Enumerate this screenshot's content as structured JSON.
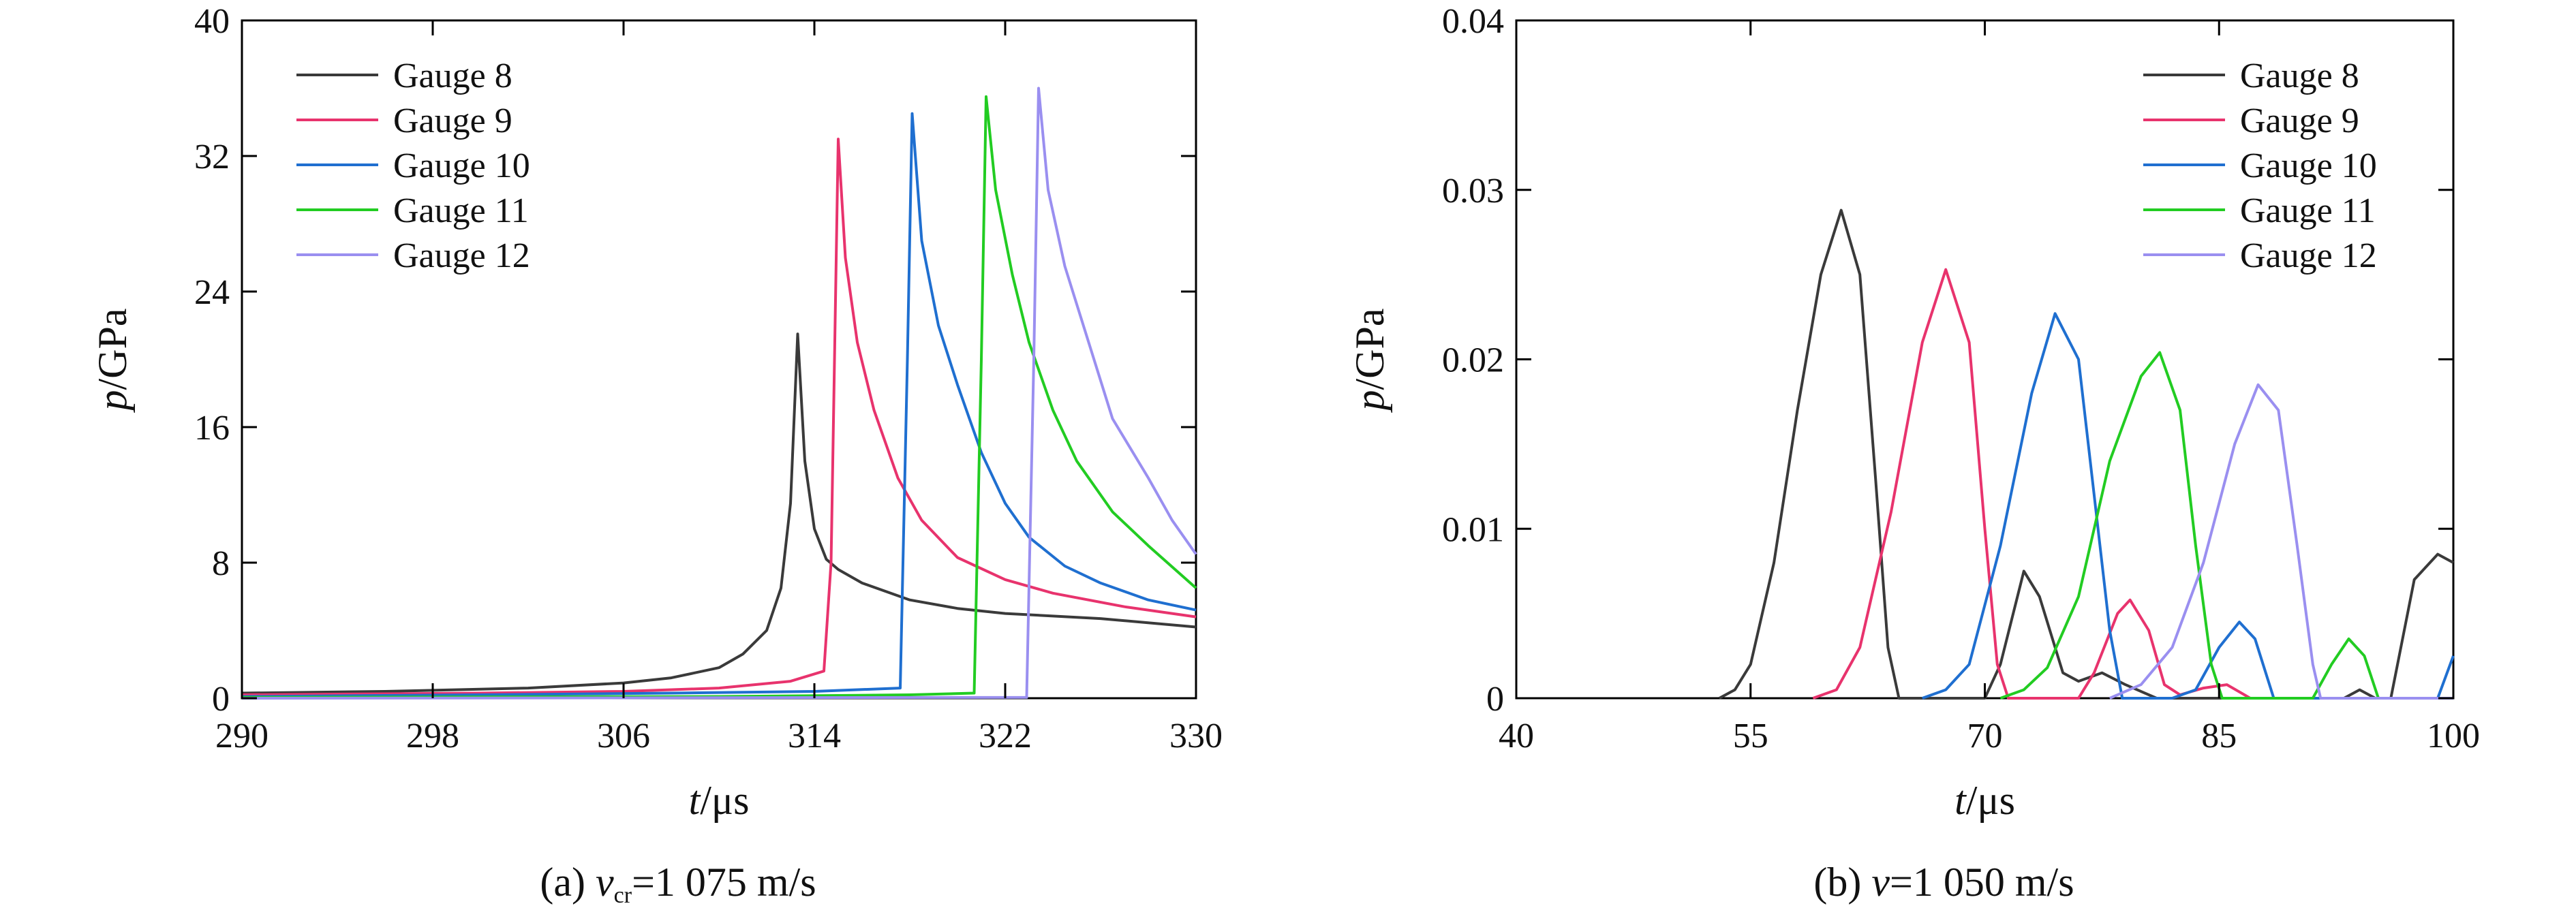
{
  "colors": {
    "gauge8": "#3a3a3a",
    "gauge9": "#e8336d",
    "gauge10": "#1f6fd0",
    "gauge11": "#22cc22",
    "gauge12": "#9a8ff0",
    "axis": "#000000"
  },
  "chart_data": [
    {
      "type": "line",
      "panel": "a",
      "caption_prefix": "(a) ",
      "caption_var": "v",
      "caption_sub": "cr",
      "caption_rest": "=1 075 m/s",
      "xlabel_var": "t",
      "xlabel_unit": "/μs",
      "ylabel_var": "p",
      "ylabel_unit": "/GPa",
      "xlim": [
        290,
        330
      ],
      "ylim": [
        0,
        40
      ],
      "xticks": [
        290,
        298,
        306,
        314,
        322,
        330
      ],
      "yticks": [
        0,
        8,
        16,
        24,
        32,
        40
      ],
      "ytick_labels": [
        "0",
        "8",
        "16",
        "24",
        "32",
        "40"
      ],
      "legend_position": "top-left",
      "grid": false,
      "series": [
        {
          "name": "Gauge 8",
          "color_key": "gauge8",
          "points": [
            [
              290,
              0.3
            ],
            [
              296,
              0.4
            ],
            [
              302,
              0.6
            ],
            [
              306,
              0.9
            ],
            [
              308,
              1.2
            ],
            [
              310,
              1.8
            ],
            [
              311,
              2.6
            ],
            [
              312,
              4.0
            ],
            [
              312.6,
              6.5
            ],
            [
              313.0,
              11.5
            ],
            [
              313.3,
              21.5
            ],
            [
              313.6,
              14.0
            ],
            [
              314.0,
              10.0
            ],
            [
              314.5,
              8.2
            ],
            [
              315,
              7.6
            ],
            [
              316,
              6.8
            ],
            [
              318,
              5.8
            ],
            [
              320,
              5.3
            ],
            [
              322,
              5.0
            ],
            [
              326,
              4.7
            ],
            [
              330,
              4.2
            ]
          ]
        },
        {
          "name": "Gauge 9",
          "color_key": "gauge9",
          "points": [
            [
              290,
              0.2
            ],
            [
              300,
              0.3
            ],
            [
              306,
              0.4
            ],
            [
              310,
              0.6
            ],
            [
              313,
              1.0
            ],
            [
              314.4,
              1.6
            ],
            [
              314.7,
              8.0
            ],
            [
              315.0,
              33.0
            ],
            [
              315.3,
              26.0
            ],
            [
              315.8,
              21.0
            ],
            [
              316.5,
              17.0
            ],
            [
              317.5,
              13.0
            ],
            [
              318.5,
              10.5
            ],
            [
              320,
              8.3
            ],
            [
              322,
              7.0
            ],
            [
              324,
              6.2
            ],
            [
              327,
              5.4
            ],
            [
              330,
              4.8
            ]
          ]
        },
        {
          "name": "Gauge 10",
          "color_key": "gauge10",
          "points": [
            [
              290,
              0.1
            ],
            [
              300,
              0.2
            ],
            [
              308,
              0.3
            ],
            [
              314,
              0.4
            ],
            [
              317.6,
              0.6
            ],
            [
              317.9,
              20.0
            ],
            [
              318.1,
              34.5
            ],
            [
              318.5,
              27.0
            ],
            [
              319.2,
              22.0
            ],
            [
              320,
              18.5
            ],
            [
              321,
              14.5
            ],
            [
              322,
              11.5
            ],
            [
              323,
              9.5
            ],
            [
              324.5,
              7.8
            ],
            [
              326,
              6.8
            ],
            [
              328,
              5.8
            ],
            [
              330,
              5.2
            ]
          ]
        },
        {
          "name": "Gauge 11",
          "color_key": "gauge11",
          "points": [
            [
              290,
              0.05
            ],
            [
              310,
              0.1
            ],
            [
              318,
              0.2
            ],
            [
              320.7,
              0.3
            ],
            [
              321.0,
              20.0
            ],
            [
              321.2,
              35.5
            ],
            [
              321.6,
              30.0
            ],
            [
              322.3,
              25.0
            ],
            [
              323,
              21.0
            ],
            [
              324,
              17.0
            ],
            [
              325,
              14.0
            ],
            [
              326.5,
              11.0
            ],
            [
              328,
              9.0
            ],
            [
              330,
              6.5
            ]
          ]
        },
        {
          "name": "Gauge 12",
          "color_key": "gauge12",
          "points": [
            [
              290,
              0.0
            ],
            [
              322.9,
              0.05
            ],
            [
              323.2,
              20.0
            ],
            [
              323.4,
              36.0
            ],
            [
              323.8,
              30.0
            ],
            [
              324.5,
              25.5
            ],
            [
              325.5,
              21.0
            ],
            [
              326.5,
              16.5
            ],
            [
              328,
              13.0
            ],
            [
              329,
              10.5
            ],
            [
              330,
              8.5
            ]
          ]
        }
      ]
    },
    {
      "type": "line",
      "panel": "b",
      "caption_prefix": "(b) ",
      "caption_var": "v",
      "caption_sub": "",
      "caption_rest": "=1 050 m/s",
      "xlabel_var": "t",
      "xlabel_unit": "/μs",
      "ylabel_var": "p",
      "ylabel_unit": "/GPa",
      "xlim": [
        40,
        100
      ],
      "ylim": [
        0,
        0.04
      ],
      "xticks": [
        40,
        55,
        70,
        85,
        100
      ],
      "yticks": [
        0,
        0.01,
        0.02,
        0.03,
        0.04
      ],
      "ytick_labels": [
        "0",
        "0.01",
        "0.02",
        "0.03",
        "0.04"
      ],
      "legend_position": "top-right",
      "grid": false,
      "series": [
        {
          "name": "Gauge 8",
          "color_key": "gauge8",
          "points": [
            [
              53,
              0
            ],
            [
              54,
              0.0005
            ],
            [
              55,
              0.002
            ],
            [
              56.5,
              0.008
            ],
            [
              58,
              0.017
            ],
            [
              59.5,
              0.025
            ],
            [
              60.8,
              0.0288
            ],
            [
              62,
              0.025
            ],
            [
              63,
              0.013
            ],
            [
              63.8,
              0.003
            ],
            [
              64.5,
              0
            ],
            [
              70,
              0
            ],
            [
              71,
              0.002
            ],
            [
              72.5,
              0.0075
            ],
            [
              73.5,
              0.006
            ],
            [
              75,
              0.0015
            ],
            [
              76,
              0.001
            ],
            [
              77.5,
              0.0015
            ],
            [
              79,
              0.0008
            ],
            [
              81,
              0
            ],
            [
              93,
              0
            ],
            [
              94,
              0.0005
            ],
            [
              95,
              0
            ],
            [
              96,
              0
            ],
            [
              97.5,
              0.007
            ],
            [
              99,
              0.0085
            ],
            [
              100,
              0.008
            ]
          ]
        },
        {
          "name": "Gauge 9",
          "color_key": "gauge9",
          "points": [
            [
              59,
              0
            ],
            [
              60.5,
              0.0005
            ],
            [
              62,
              0.003
            ],
            [
              64,
              0.011
            ],
            [
              66,
              0.021
            ],
            [
              67.5,
              0.0253
            ],
            [
              69,
              0.021
            ],
            [
              70,
              0.01
            ],
            [
              70.8,
              0.002
            ],
            [
              71.5,
              0
            ],
            [
              76,
              0
            ],
            [
              77,
              0.0015
            ],
            [
              78.5,
              0.005
            ],
            [
              79.3,
              0.0058
            ],
            [
              80.5,
              0.004
            ],
            [
              81.5,
              0.0008
            ],
            [
              82.5,
              0.0002
            ],
            [
              84,
              0.0006
            ],
            [
              85.5,
              0.0008
            ],
            [
              87,
              0
            ],
            [
              100,
              0
            ]
          ]
        },
        {
          "name": "Gauge 10",
          "color_key": "gauge10",
          "points": [
            [
              66,
              0
            ],
            [
              67.5,
              0.0005
            ],
            [
              69,
              0.002
            ],
            [
              71,
              0.009
            ],
            [
              73,
              0.018
            ],
            [
              74.5,
              0.0227
            ],
            [
              76,
              0.02
            ],
            [
              77,
              0.012
            ],
            [
              78,
              0.004
            ],
            [
              78.8,
              0
            ],
            [
              82,
              0
            ],
            [
              83.5,
              0.0005
            ],
            [
              85,
              0.003
            ],
            [
              86.3,
              0.0045
            ],
            [
              87.3,
              0.0035
            ],
            [
              88.5,
              0
            ],
            [
              99,
              0
            ],
            [
              100,
              0.0025
            ]
          ]
        },
        {
          "name": "Gauge 11",
          "color_key": "gauge11",
          "points": [
            [
              71,
              0
            ],
            [
              72.5,
              0.0005
            ],
            [
              74,
              0.0018
            ],
            [
              76,
              0.006
            ],
            [
              78,
              0.014
            ],
            [
              80,
              0.019
            ],
            [
              81.2,
              0.0204
            ],
            [
              82.5,
              0.017
            ],
            [
              83.5,
              0.009
            ],
            [
              84.5,
              0.002
            ],
            [
              85.2,
              0
            ],
            [
              91,
              0
            ],
            [
              92.2,
              0.002
            ],
            [
              93.3,
              0.0035
            ],
            [
              94.3,
              0.0025
            ],
            [
              95.2,
              0
            ],
            [
              100,
              0
            ]
          ]
        },
        {
          "name": "Gauge 12",
          "color_key": "gauge12",
          "points": [
            [
              78,
              0
            ],
            [
              80,
              0.0008
            ],
            [
              82,
              0.003
            ],
            [
              84,
              0.008
            ],
            [
              86,
              0.015
            ],
            [
              87.5,
              0.0185
            ],
            [
              88.8,
              0.017
            ],
            [
              90,
              0.009
            ],
            [
              91,
              0.002
            ],
            [
              91.5,
              0
            ],
            [
              100,
              0
            ]
          ]
        }
      ]
    }
  ]
}
